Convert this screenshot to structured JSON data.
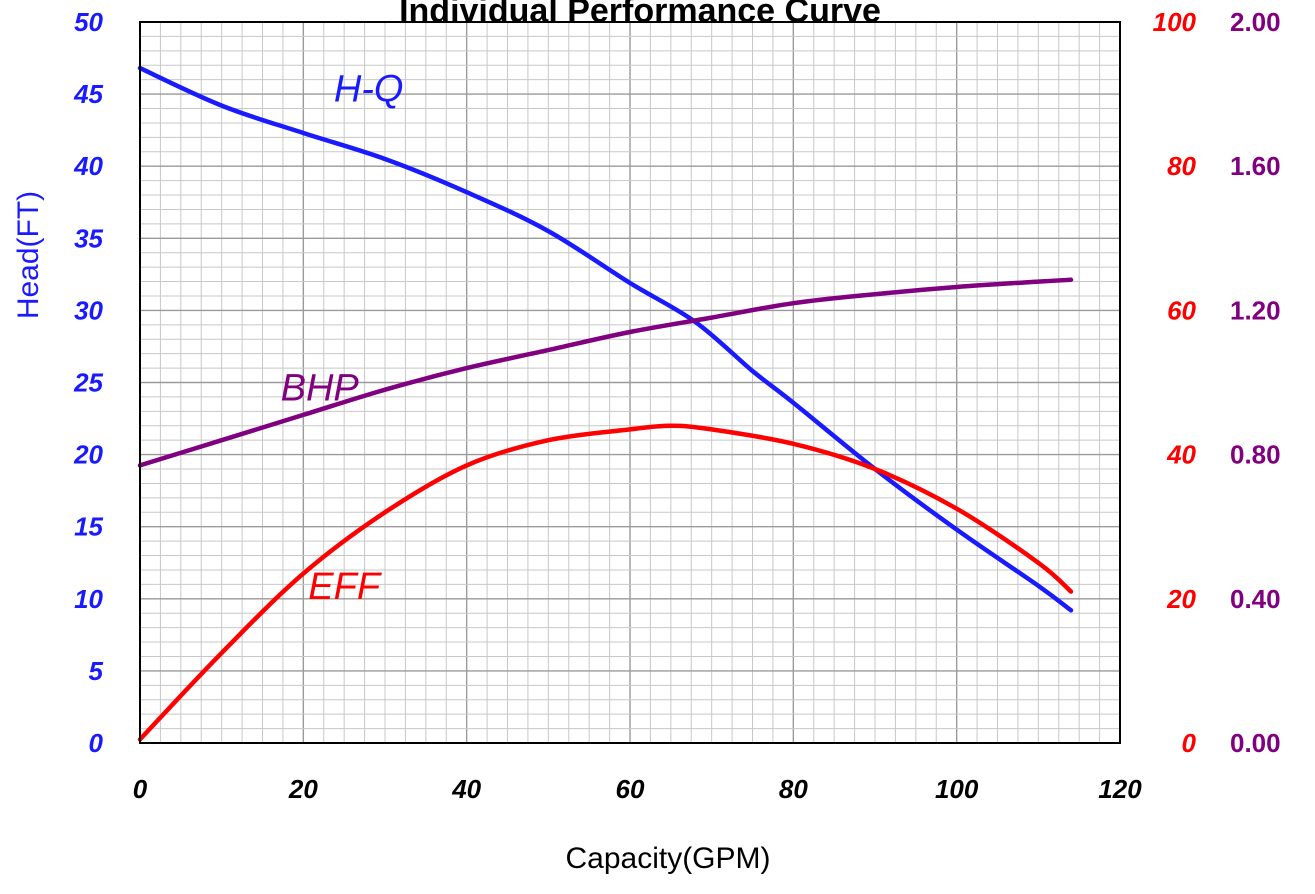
{
  "chart_data": {
    "type": "line",
    "title": "Individual Performance Curve",
    "xlabel": "Capacity(GPM)",
    "ylabel": "Head(FT)",
    "xlim": [
      0,
      120
    ],
    "ylim": [
      0,
      50
    ],
    "y2lim": [
      0,
      100
    ],
    "y3lim": [
      0,
      2.0
    ],
    "grid": true,
    "x_ticks": [
      "0",
      "20",
      "40",
      "60",
      "80",
      "100",
      "120"
    ],
    "y_ticks": [
      "0",
      "5",
      "10",
      "15",
      "20",
      "25",
      "30",
      "35",
      "40",
      "45",
      "50"
    ],
    "y2_ticks": [
      "0",
      "20",
      "40",
      "60",
      "80",
      "100"
    ],
    "y3_ticks": [
      "0.00",
      "0.40",
      "0.80",
      "1.20",
      "1.60",
      "2.00"
    ],
    "colors": {
      "hq": "#1a1aff",
      "eff": "#ff0000",
      "bhp": "#800080",
      "grid": "#c8c8c8",
      "frame": "#000000"
    },
    "series": [
      {
        "name": "H-Q",
        "axis": "head",
        "x": [
          0,
          10,
          20,
          30,
          40,
          50,
          60,
          68,
          75,
          80,
          90,
          100,
          110,
          114
        ],
        "values": [
          46.8,
          44.2,
          42.3,
          40.5,
          38.2,
          35.5,
          31.9,
          29.2,
          25.8,
          23.6,
          19.0,
          14.8,
          10.9,
          9.2
        ]
      },
      {
        "name": "EFF",
        "axis": "eff",
        "x": [
          0,
          10,
          20,
          30,
          40,
          50,
          60,
          65,
          70,
          80,
          90,
          100,
          110,
          114
        ],
        "values": [
          0.5,
          12.5,
          23.5,
          32,
          38.5,
          42,
          43.5,
          44,
          43.5,
          41.5,
          38,
          32.5,
          25,
          21
        ]
      },
      {
        "name": "BHP",
        "axis": "bhp",
        "x": [
          0,
          10,
          20,
          30,
          40,
          50,
          60,
          70,
          80,
          90,
          100,
          110,
          114
        ],
        "values": [
          0.77,
          0.84,
          0.91,
          0.98,
          1.04,
          1.09,
          1.14,
          1.18,
          1.22,
          1.245,
          1.265,
          1.28,
          1.285
        ]
      }
    ]
  }
}
